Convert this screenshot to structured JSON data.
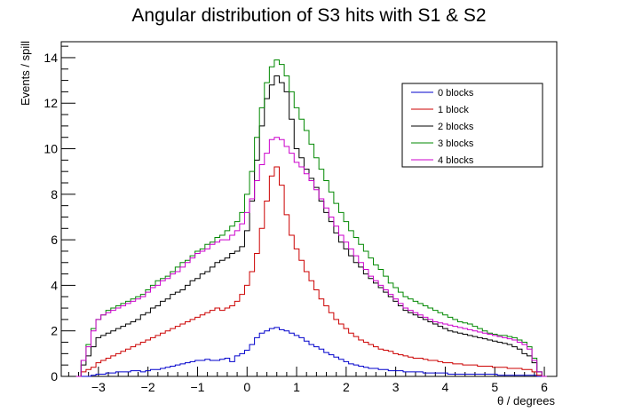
{
  "chart_data": {
    "type": "line",
    "step": true,
    "title": "Angular distribution of S3 hits with S1 & S2",
    "xlabel": "θ / degrees",
    "ylabel": "Events / spill",
    "xlim": [
      -3.75,
      6.25
    ],
    "ylim": [
      0,
      14.7
    ],
    "xticks": [
      -3,
      -2,
      -1,
      0,
      1,
      2,
      3,
      4,
      5,
      6
    ],
    "yticks": [
      0,
      2,
      4,
      6,
      8,
      10,
      12,
      14
    ],
    "grid": false,
    "legend_position": "top-right",
    "x": [
      -3.4,
      -3.3,
      -3.2,
      -3.1,
      -3.0,
      -2.9,
      -2.8,
      -2.7,
      -2.6,
      -2.5,
      -2.4,
      -2.3,
      -2.2,
      -2.1,
      -2.0,
      -1.9,
      -1.8,
      -1.7,
      -1.6,
      -1.5,
      -1.4,
      -1.3,
      -1.2,
      -1.1,
      -1.0,
      -0.9,
      -0.8,
      -0.7,
      -0.6,
      -0.5,
      -0.4,
      -0.3,
      -0.2,
      -0.1,
      0.0,
      0.1,
      0.2,
      0.3,
      0.4,
      0.5,
      0.6,
      0.7,
      0.8,
      0.9,
      1.0,
      1.1,
      1.2,
      1.3,
      1.4,
      1.5,
      1.6,
      1.7,
      1.8,
      1.9,
      2.0,
      2.1,
      2.2,
      2.3,
      2.4,
      2.5,
      2.6,
      2.7,
      2.8,
      2.9,
      3.0,
      3.1,
      3.2,
      3.3,
      3.4,
      3.5,
      3.6,
      3.7,
      3.8,
      3.9,
      4.0,
      4.1,
      4.2,
      4.3,
      4.4,
      4.5,
      4.6,
      4.7,
      4.8,
      4.9,
      5.0,
      5.1,
      5.2,
      5.3,
      5.4,
      5.5,
      5.6,
      5.7,
      5.8,
      5.9,
      6.0
    ],
    "bin_width": 0.1,
    "series": [
      {
        "name": "0 blocks",
        "color": "#0000cc",
        "values": [
          0.0,
          0.0,
          0.0,
          0.05,
          0.1,
          0.1,
          0.15,
          0.15,
          0.2,
          0.2,
          0.2,
          0.25,
          0.25,
          0.2,
          0.25,
          0.3,
          0.3,
          0.35,
          0.4,
          0.45,
          0.5,
          0.55,
          0.6,
          0.65,
          0.7,
          0.7,
          0.75,
          0.7,
          0.7,
          0.75,
          0.8,
          0.65,
          0.9,
          1.0,
          1.15,
          1.4,
          1.7,
          1.9,
          2.0,
          2.1,
          2.15,
          2.05,
          2.0,
          1.9,
          1.8,
          1.7,
          1.55,
          1.4,
          1.3,
          1.2,
          1.05,
          0.95,
          0.85,
          0.75,
          0.65,
          0.55,
          0.5,
          0.45,
          0.4,
          0.35,
          0.35,
          0.3,
          0.3,
          0.25,
          0.25,
          0.25,
          0.2,
          0.2,
          0.2,
          0.2,
          0.15,
          0.15,
          0.15,
          0.15,
          0.15,
          0.1,
          0.1,
          0.1,
          0.1,
          0.1,
          0.1,
          0.1,
          0.1,
          0.1,
          0.1,
          0.05,
          0.05,
          0.05,
          0.05,
          0.05,
          0.05,
          0.05,
          0.05,
          0.0,
          0.0
        ]
      },
      {
        "name": "1 block",
        "color": "#cc0000",
        "values": [
          0.0,
          0.2,
          0.3,
          0.4,
          0.6,
          0.7,
          0.8,
          0.9,
          1.0,
          1.1,
          1.2,
          1.3,
          1.4,
          1.5,
          1.6,
          1.7,
          1.8,
          1.9,
          2.0,
          2.1,
          2.2,
          2.3,
          2.4,
          2.5,
          2.6,
          2.7,
          2.8,
          2.9,
          3.0,
          2.9,
          3.0,
          3.1,
          3.3,
          3.6,
          4.0,
          4.6,
          5.4,
          6.5,
          7.7,
          8.8,
          9.2,
          8.4,
          7.1,
          6.2,
          5.6,
          5.1,
          4.6,
          4.2,
          3.8,
          3.4,
          3.1,
          2.8,
          2.5,
          2.3,
          2.1,
          1.9,
          1.75,
          1.6,
          1.5,
          1.4,
          1.3,
          1.2,
          1.15,
          1.1,
          1.0,
          0.95,
          0.9,
          0.85,
          0.8,
          0.8,
          0.75,
          0.7,
          0.7,
          0.65,
          0.6,
          0.6,
          0.55,
          0.55,
          0.5,
          0.5,
          0.5,
          0.45,
          0.45,
          0.45,
          0.4,
          0.4,
          0.4,
          0.35,
          0.35,
          0.35,
          0.3,
          0.3,
          0.2,
          0.05,
          0.0
        ]
      },
      {
        "name": "2 blocks",
        "color": "#000000",
        "values": [
          0.0,
          0.5,
          0.9,
          1.3,
          1.7,
          1.8,
          1.9,
          2.0,
          2.1,
          2.2,
          2.3,
          2.4,
          2.5,
          2.7,
          2.8,
          3.0,
          3.1,
          3.3,
          3.4,
          3.6,
          3.7,
          3.8,
          4.0,
          4.2,
          4.3,
          4.5,
          4.6,
          4.8,
          5.0,
          5.1,
          5.2,
          5.4,
          5.5,
          5.7,
          6.4,
          7.7,
          9.5,
          11.0,
          12.2,
          12.8,
          13.2,
          12.9,
          12.5,
          11.3,
          10.0,
          9.6,
          9.1,
          8.7,
          8.3,
          7.7,
          7.2,
          6.8,
          6.3,
          5.9,
          5.6,
          5.3,
          5.0,
          4.8,
          4.5,
          4.3,
          4.1,
          3.9,
          3.7,
          3.5,
          3.3,
          3.1,
          2.9,
          2.8,
          2.7,
          2.6,
          2.5,
          2.4,
          2.3,
          2.2,
          2.1,
          2.0,
          1.95,
          1.9,
          1.85,
          1.8,
          1.75,
          1.7,
          1.65,
          1.6,
          1.55,
          1.5,
          1.45,
          1.4,
          1.3,
          1.2,
          1.0,
          0.9,
          0.6,
          0.2,
          0.0
        ]
      },
      {
        "name": "3 blocks",
        "color": "#008800",
        "values": [
          0.0,
          0.7,
          1.4,
          2.1,
          2.5,
          2.7,
          2.9,
          3.0,
          3.1,
          3.2,
          3.3,
          3.4,
          3.5,
          3.6,
          3.8,
          4.0,
          4.2,
          4.3,
          4.4,
          4.6,
          4.8,
          5.0,
          5.1,
          5.3,
          5.5,
          5.6,
          5.8,
          5.9,
          6.1,
          6.2,
          6.4,
          6.6,
          6.8,
          7.2,
          8.0,
          9.0,
          10.5,
          11.8,
          12.9,
          13.6,
          13.9,
          13.7,
          13.2,
          12.5,
          11.8,
          11.3,
          10.8,
          10.2,
          9.6,
          9.1,
          8.6,
          8.1,
          7.6,
          7.2,
          6.8,
          6.4,
          6.1,
          5.8,
          5.5,
          5.2,
          4.9,
          4.7,
          4.4,
          4.1,
          3.9,
          3.7,
          3.5,
          3.4,
          3.3,
          3.2,
          3.1,
          3.0,
          2.9,
          2.8,
          2.7,
          2.6,
          2.5,
          2.4,
          2.35,
          2.3,
          2.2,
          2.1,
          2.0,
          1.9,
          1.85,
          1.8,
          1.8,
          1.75,
          1.7,
          1.6,
          1.5,
          1.3,
          0.8,
          0.2,
          0.0
        ]
      },
      {
        "name": "4 blocks",
        "color": "#cc00cc",
        "values": [
          0.0,
          0.7,
          1.3,
          2.0,
          2.5,
          2.7,
          2.8,
          2.9,
          3.0,
          3.1,
          3.2,
          3.3,
          3.4,
          3.5,
          3.7,
          3.9,
          4.0,
          4.2,
          4.3,
          4.5,
          4.6,
          4.8,
          5.0,
          5.2,
          5.4,
          5.5,
          5.6,
          5.8,
          5.9,
          6.0,
          6.0,
          6.2,
          6.4,
          6.7,
          7.2,
          7.8,
          8.6,
          9.3,
          9.8,
          10.4,
          10.5,
          10.4,
          10.1,
          9.8,
          9.4,
          9.2,
          8.9,
          8.6,
          8.2,
          7.8,
          7.4,
          7.0,
          6.6,
          6.2,
          5.9,
          5.6,
          5.3,
          5.0,
          4.7,
          4.4,
          4.2,
          4.0,
          3.8,
          3.6,
          3.4,
          3.2,
          3.0,
          2.9,
          2.8,
          2.7,
          2.6,
          2.5,
          2.4,
          2.35,
          2.3,
          2.25,
          2.2,
          2.15,
          2.1,
          2.05,
          2.0,
          1.95,
          1.9,
          1.85,
          1.8,
          1.75,
          1.7,
          1.65,
          1.6,
          1.5,
          1.4,
          1.2,
          0.7,
          0.2,
          0.0
        ]
      }
    ]
  }
}
